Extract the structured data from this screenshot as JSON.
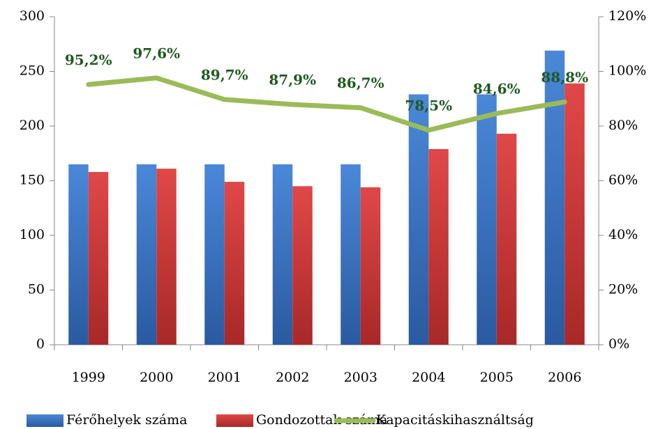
{
  "chart_data": {
    "type": "bar",
    "categories": [
      "1999",
      "2000",
      "2001",
      "2002",
      "2003",
      "2004",
      "2005",
      "2006"
    ],
    "series": [
      {
        "name": "Férőhelyek száma",
        "color": "#3a78c8",
        "values": [
          165,
          165,
          165,
          165,
          165,
          229,
          229,
          269
        ]
      },
      {
        "name": "Gondozottak száma",
        "color": "#d03a3a",
        "values": [
          158,
          161,
          149,
          145,
          144,
          179,
          193,
          239
        ]
      },
      {
        "name": "Kapacitáskihasználtság",
        "color": "#9bbb59",
        "type": "line",
        "axis": "y2",
        "values": [
          95.2,
          97.6,
          89.7,
          87.9,
          86.7,
          78.5,
          84.6,
          88.8
        ],
        "value_labels": [
          "95,2%",
          "97,6%",
          "89,7%",
          "87,9%",
          "86,7%",
          "78,5%",
          "84,6%",
          "88,8%"
        ]
      }
    ],
    "ylim": [
      0,
      300
    ],
    "yticks": [
      0,
      50,
      100,
      150,
      200,
      250,
      300
    ],
    "y2lim": [
      0,
      120
    ],
    "y2ticks": [
      {
        "value": 0,
        "label": "0%"
      },
      {
        "value": 20,
        "label": "20%"
      },
      {
        "value": 40,
        "label": "40%"
      },
      {
        "value": 60,
        "label": "60%"
      },
      {
        "value": 80,
        "label": "80%"
      },
      {
        "value": 100,
        "label": "100%"
      },
      {
        "value": 120,
        "label": "120%"
      }
    ],
    "legend": "bottom"
  }
}
